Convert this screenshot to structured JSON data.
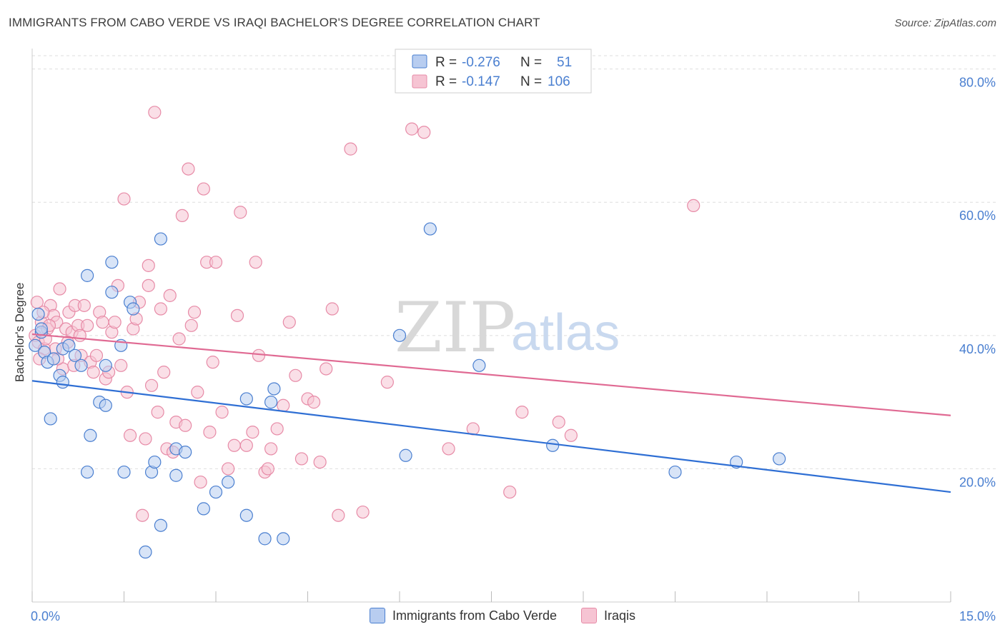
{
  "title": "IMMIGRANTS FROM CABO VERDE VS IRAQI BACHELOR'S DEGREE CORRELATION CHART",
  "source": "Source: ZipAtlas.com",
  "watermark": {
    "zip": "ZIP",
    "atlas": "atlas"
  },
  "colors": {
    "blue": "#4a7fd0",
    "blue_fill": "#b8cdf0",
    "blue_line": "#2f6fd4",
    "pink": "#e78ba7",
    "pink_fill": "#f6c4d3",
    "pink_line": "#e06a93",
    "grid": "#dedede",
    "axis_label": "#4a7fd0"
  },
  "legend": {
    "rows": [
      {
        "r_label": "R = ",
        "r_value": "-0.276",
        "n_label": "N = ",
        "n_value": "51"
      },
      {
        "r_label": "R = ",
        "r_value": "-0.147",
        "n_label": "N = ",
        "n_value": "106"
      }
    ]
  },
  "bottom_legend": {
    "series1": "Immigrants from Cabo Verde",
    "series2": "Iraqis"
  },
  "chart_data": {
    "type": "scatter",
    "title": "IMMIGRANTS FROM CABO VERDE VS IRAQI BACHELOR'S DEGREE CORRELATION CHART",
    "xlabel": "",
    "ylabel": "Bachelor's Degree",
    "xlim": [
      0,
      15
    ],
    "ylim": [
      0,
      82
    ],
    "x_tick_labels": [
      "0.0%",
      "15.0%"
    ],
    "y_ticks": [
      20,
      40,
      60,
      80
    ],
    "y_tick_labels": [
      "20.0%",
      "40.0%",
      "60.0%",
      "80.0%"
    ],
    "grid": true,
    "series": [
      {
        "name": "Immigrants from Cabo Verde",
        "color": "blue",
        "trend": {
          "x": [
            0,
            15
          ],
          "y": [
            33.2,
            16.5
          ]
        },
        "points": [
          [
            0.05,
            38.5
          ],
          [
            0.1,
            43.2
          ],
          [
            0.15,
            40.5
          ],
          [
            0.2,
            37.5
          ],
          [
            0.25,
            36.0
          ],
          [
            0.3,
            27.5
          ],
          [
            0.35,
            36.5
          ],
          [
            0.45,
            34.0
          ],
          [
            0.5,
            33.0
          ],
          [
            0.5,
            38.0
          ],
          [
            0.6,
            38.5
          ],
          [
            0.7,
            37.0
          ],
          [
            0.8,
            35.5
          ],
          [
            0.9,
            49.0
          ],
          [
            0.9,
            19.5
          ],
          [
            0.95,
            25.0
          ],
          [
            1.1,
            30.0
          ],
          [
            1.2,
            29.5
          ],
          [
            1.2,
            35.5
          ],
          [
            1.3,
            46.5
          ],
          [
            1.3,
            51.0
          ],
          [
            1.45,
            38.5
          ],
          [
            1.5,
            19.5
          ],
          [
            1.6,
            45.0
          ],
          [
            1.65,
            44.0
          ],
          [
            1.85,
            7.5
          ],
          [
            1.95,
            19.5
          ],
          [
            2.0,
            21.0
          ],
          [
            2.1,
            11.5
          ],
          [
            2.1,
            54.5
          ],
          [
            2.35,
            19.0
          ],
          [
            2.35,
            23.0
          ],
          [
            2.5,
            22.5
          ],
          [
            2.8,
            14.0
          ],
          [
            3.0,
            16.5
          ],
          [
            3.2,
            18.0
          ],
          [
            3.5,
            30.5
          ],
          [
            3.5,
            13.0
          ],
          [
            3.8,
            9.5
          ],
          [
            3.9,
            30.0
          ],
          [
            3.95,
            32.0
          ],
          [
            4.1,
            9.5
          ],
          [
            6.0,
            40.0
          ],
          [
            6.1,
            22.0
          ],
          [
            6.5,
            56.0
          ],
          [
            7.3,
            35.5
          ],
          [
            8.5,
            23.5
          ],
          [
            10.5,
            19.5
          ],
          [
            11.5,
            21.0
          ],
          [
            12.2,
            21.5
          ],
          [
            0.15,
            41.0
          ]
        ]
      },
      {
        "name": "Iraqis",
        "color": "pink",
        "trend": {
          "x": [
            0,
            15
          ],
          "y": [
            40.2,
            28.0
          ]
        },
        "points": [
          [
            0.05,
            40.0
          ],
          [
            0.1,
            39.0
          ],
          [
            0.15,
            42.0
          ],
          [
            0.2,
            38.0
          ],
          [
            0.25,
            41.0
          ],
          [
            0.3,
            44.5
          ],
          [
            0.35,
            43.0
          ],
          [
            0.4,
            42.0
          ],
          [
            0.45,
            47.0
          ],
          [
            0.5,
            35.0
          ],
          [
            0.55,
            41.0
          ],
          [
            0.6,
            43.5
          ],
          [
            0.65,
            40.5
          ],
          [
            0.7,
            44.5
          ],
          [
            0.75,
            41.5
          ],
          [
            0.8,
            37.0
          ],
          [
            0.85,
            44.5
          ],
          [
            0.9,
            41.5
          ],
          [
            0.95,
            36.0
          ],
          [
            1.0,
            34.5
          ],
          [
            1.05,
            37.0
          ],
          [
            1.1,
            43.5
          ],
          [
            1.15,
            42.0
          ],
          [
            1.2,
            33.5
          ],
          [
            1.25,
            34.5
          ],
          [
            1.3,
            40.5
          ],
          [
            1.35,
            42.0
          ],
          [
            1.4,
            47.5
          ],
          [
            1.45,
            35.5
          ],
          [
            1.5,
            60.5
          ],
          [
            1.55,
            31.5
          ],
          [
            1.6,
            25.0
          ],
          [
            1.65,
            41.0
          ],
          [
            1.7,
            42.5
          ],
          [
            1.75,
            45.0
          ],
          [
            1.8,
            13.0
          ],
          [
            1.85,
            24.5
          ],
          [
            1.9,
            47.5
          ],
          [
            1.9,
            50.5
          ],
          [
            1.95,
            32.5
          ],
          [
            2.0,
            73.5
          ],
          [
            2.05,
            28.5
          ],
          [
            2.1,
            44.0
          ],
          [
            2.15,
            34.5
          ],
          [
            2.2,
            23.0
          ],
          [
            2.25,
            46.0
          ],
          [
            2.3,
            22.5
          ],
          [
            2.35,
            27.0
          ],
          [
            2.4,
            39.5
          ],
          [
            2.45,
            58.0
          ],
          [
            2.5,
            26.5
          ],
          [
            2.55,
            65.0
          ],
          [
            2.6,
            41.5
          ],
          [
            2.65,
            43.5
          ],
          [
            2.7,
            31.5
          ],
          [
            2.75,
            18.0
          ],
          [
            2.8,
            62.0
          ],
          [
            2.85,
            51.0
          ],
          [
            2.9,
            25.5
          ],
          [
            2.95,
            36.0
          ],
          [
            3.0,
            51.0
          ],
          [
            3.1,
            28.5
          ],
          [
            3.2,
            20.0
          ],
          [
            3.3,
            23.5
          ],
          [
            3.35,
            43.0
          ],
          [
            3.4,
            58.5
          ],
          [
            3.5,
            23.5
          ],
          [
            3.6,
            25.5
          ],
          [
            3.65,
            51.0
          ],
          [
            3.7,
            37.0
          ],
          [
            3.8,
            19.5
          ],
          [
            3.85,
            20.0
          ],
          [
            3.9,
            23.0
          ],
          [
            4.0,
            26.0
          ],
          [
            4.1,
            29.5
          ],
          [
            4.2,
            42.0
          ],
          [
            4.3,
            34.0
          ],
          [
            4.4,
            21.5
          ],
          [
            4.5,
            30.5
          ],
          [
            4.6,
            30.0
          ],
          [
            4.7,
            21.0
          ],
          [
            4.8,
            35.0
          ],
          [
            4.9,
            44.0
          ],
          [
            5.0,
            13.0
          ],
          [
            5.2,
            68.0
          ],
          [
            5.4,
            13.5
          ],
          [
            5.8,
            33.0
          ],
          [
            6.2,
            71.0
          ],
          [
            6.4,
            70.5
          ],
          [
            6.8,
            23.0
          ],
          [
            7.2,
            26.0
          ],
          [
            7.8,
            16.5
          ],
          [
            8.0,
            28.5
          ],
          [
            8.6,
            27.0
          ],
          [
            8.8,
            25.0
          ],
          [
            10.8,
            59.5
          ],
          [
            0.08,
            45.0
          ],
          [
            0.12,
            36.5
          ],
          [
            0.18,
            43.5
          ],
          [
            0.22,
            39.5
          ],
          [
            0.28,
            41.5
          ],
          [
            0.38,
            38.0
          ],
          [
            0.42,
            36.5
          ],
          [
            0.58,
            39.0
          ],
          [
            0.68,
            35.5
          ],
          [
            0.78,
            40.0
          ]
        ]
      }
    ]
  }
}
